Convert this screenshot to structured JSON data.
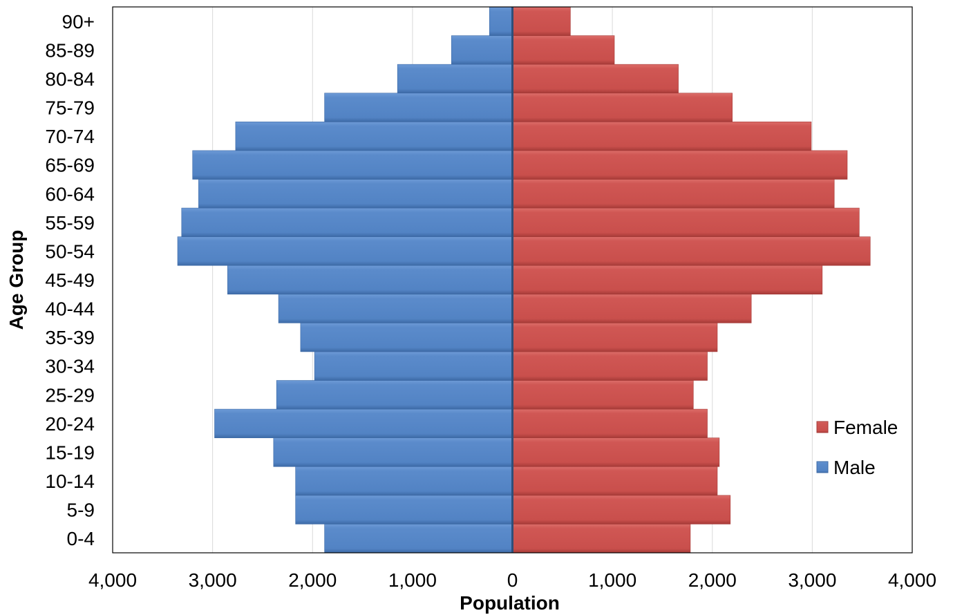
{
  "chart_data": {
    "type": "bar",
    "orientation": "horizontal",
    "variant": "population-pyramid",
    "categories": [
      "0-4",
      "5-9",
      "10-14",
      "15-19",
      "20-24",
      "25-29",
      "30-34",
      "35-39",
      "40-44",
      "45-49",
      "50-54",
      "55-59",
      "60-64",
      "65-69",
      "70-74",
      "75-79",
      "80-84",
      "85-89",
      "90+"
    ],
    "series": [
      {
        "name": "Male",
        "color": "#5b8bcb",
        "values": [
          1880,
          2170,
          2170,
          2390,
          2980,
          2360,
          1980,
          2120,
          2340,
          2850,
          3350,
          3310,
          3140,
          3200,
          2770,
          1880,
          1150,
          610,
          230
        ]
      },
      {
        "name": "Female",
        "color": "#d05754",
        "values": [
          1780,
          2180,
          2050,
          2070,
          1950,
          1810,
          1950,
          2050,
          2390,
          3100,
          3580,
          3470,
          3220,
          3350,
          2990,
          2200,
          1660,
          1020,
          580
        ]
      }
    ],
    "xlabel": "Population",
    "ylabel": "Age Group",
    "xlim": [
      -4000,
      4000
    ],
    "x_ticks": [
      "4,000",
      "3,000",
      "2,000",
      "1,000",
      "0",
      "1,000",
      "2,000",
      "3,000",
      "4,000"
    ],
    "x_tick_values": [
      -4000,
      -3000,
      -2000,
      -1000,
      0,
      1000,
      2000,
      3000,
      4000
    ],
    "grid": "vertical",
    "legend": {
      "position": "right",
      "entries": [
        "Female",
        "Male"
      ]
    }
  }
}
